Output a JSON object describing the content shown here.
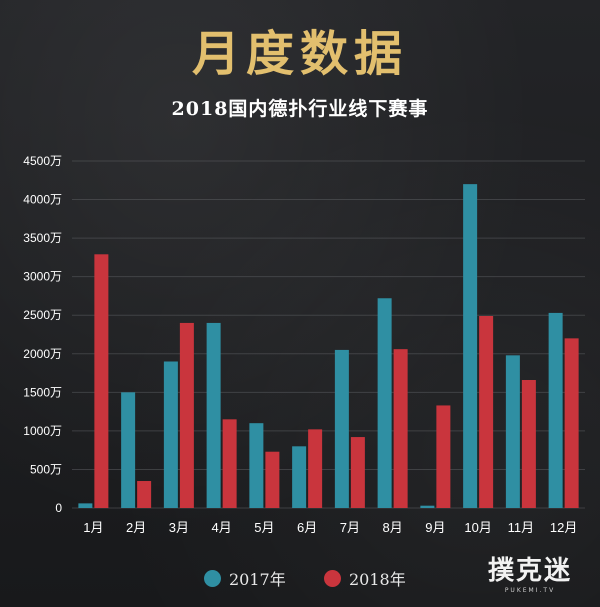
{
  "header": {
    "headline": "月度数据",
    "subtitle": "2018国内德扑行业线下赛事"
  },
  "colors": {
    "series_2017": "#2f8fa3",
    "series_2018": "#c9353d",
    "headline": "#e2bf6e",
    "grid": "#5a5b5e",
    "text": "#ffffff"
  },
  "chart_data": {
    "type": "bar",
    "categories": [
      "1月",
      "2月",
      "3月",
      "4月",
      "5月",
      "6月",
      "7月",
      "8月",
      "9月",
      "10月",
      "11月",
      "12月"
    ],
    "series": [
      {
        "name": "2017年",
        "values": [
          60,
          1500,
          1900,
          2400,
          1100,
          800,
          2050,
          2720,
          30,
          4200,
          1980,
          2530
        ]
      },
      {
        "name": "2018年",
        "values": [
          3290,
          350,
          2400,
          1150,
          730,
          1020,
          920,
          2060,
          1330,
          2490,
          1660,
          2200
        ]
      }
    ],
    "yticks": [
      "0",
      "500万",
      "1000万",
      "1500万",
      "2000万",
      "2500万",
      "3000万",
      "3500万",
      "4000万",
      "4500万"
    ],
    "ylim": [
      0,
      4500
    ],
    "grid": true,
    "legend": "bottom-center"
  },
  "legend": {
    "items": [
      {
        "label": "2017年",
        "color": "#2f8fa3"
      },
      {
        "label": "2018年",
        "color": "#c9353d"
      }
    ]
  },
  "watermark": {
    "text": "撲克迷",
    "sub": "PUKEMI.TV"
  }
}
